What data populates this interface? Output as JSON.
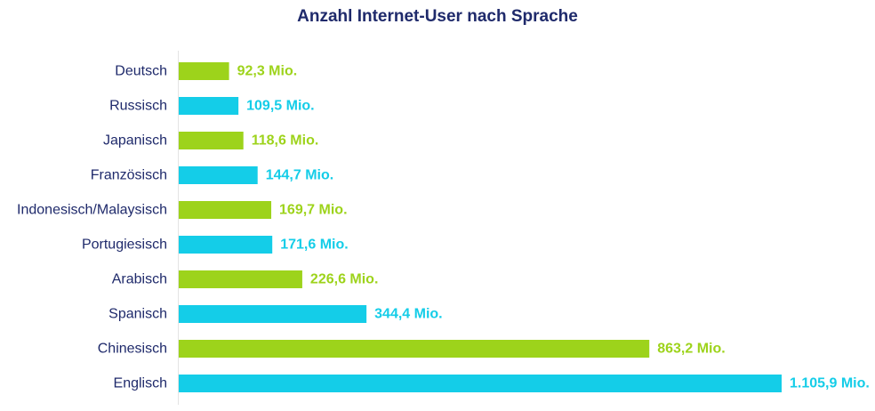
{
  "chart_data": {
    "type": "bar",
    "orientation": "horizontal",
    "title": "Anzahl Internet-User nach Sprache",
    "xlabel": "",
    "ylabel": "",
    "unit": "Mio.",
    "xlim": [
      0,
      1105.9
    ],
    "grid": false,
    "legend": "none",
    "categories": [
      "Deutsch",
      "Russisch",
      "Japanisch",
      "Französisch",
      "Indonesisch/Malaysisch",
      "Portugiesisch",
      "Arabisch",
      "Spanisch",
      "Chinesisch",
      "Englisch"
    ],
    "values": [
      92.3,
      109.5,
      118.6,
      144.7,
      169.7,
      171.6,
      226.6,
      344.4,
      863.2,
      1105.9
    ],
    "value_labels": [
      "92,3 Mio.",
      "109,5 Mio.",
      "118,6 Mio.",
      "144,7 Mio.",
      "169,7 Mio.",
      "171,6 Mio.",
      "226,6 Mio.",
      "344,4 Mio.",
      "863,2 Mio.",
      "1.105,9 Mio."
    ],
    "colors": [
      "#9dd31b",
      "#14cde8"
    ]
  }
}
